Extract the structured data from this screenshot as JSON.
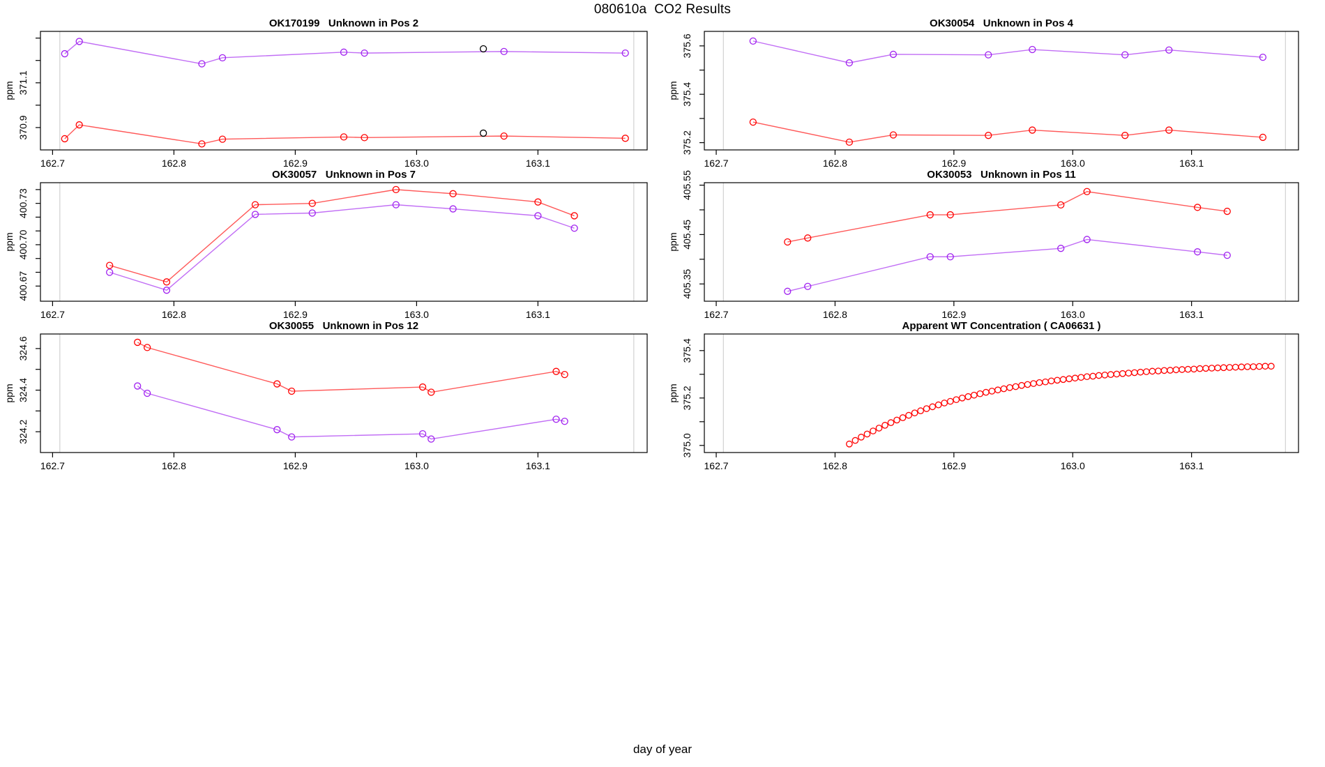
{
  "page": {
    "title": "080610a  CO2 Results",
    "xlabel": "day of year"
  },
  "axis": {
    "xlim": [
      162.69,
      163.19
    ],
    "x_ticks": [
      {
        "value": 162.7,
        "label": "162.7"
      },
      {
        "value": 162.8,
        "label": "162.8"
      },
      {
        "value": 162.9,
        "label": "162.9"
      },
      {
        "value": 163.0,
        "label": "163.0"
      },
      {
        "value": 163.1,
        "label": "163.1"
      }
    ],
    "vlines": [
      162.706,
      163.179
    ],
    "vline_color": "#c8c8c8"
  },
  "palette": {
    "red": "#ff0000",
    "purple": "#a020f0",
    "black": "#000000"
  },
  "chart_data": [
    {
      "id": "pos2",
      "type": "line",
      "title": "OK170199   Unknown in Pos 2",
      "ylabel": "ppm",
      "ylim": [
        370.8,
        371.33
      ],
      "y_ticks": [
        {
          "value": 370.9,
          "label": "370.9"
        },
        {
          "value": 371.0,
          "label": ""
        },
        {
          "value": 371.1,
          "label": "371.1"
        },
        {
          "value": 371.2,
          "label": ""
        },
        {
          "value": 371.3,
          "label": ""
        }
      ],
      "series": [
        {
          "name": "purple-series",
          "color": "#a020f0",
          "x": [
            162.71,
            162.722,
            162.823,
            162.84,
            162.94,
            162.957,
            163.072,
            163.172
          ],
          "y": [
            371.23,
            371.285,
            371.185,
            371.212,
            371.237,
            371.233,
            371.24,
            371.233
          ]
        },
        {
          "name": "red-series",
          "color": "#ff0000",
          "x": [
            162.71,
            162.722,
            162.823,
            162.84,
            162.94,
            162.957,
            163.072,
            163.172
          ],
          "y": [
            370.85,
            370.912,
            370.827,
            370.848,
            370.858,
            370.855,
            370.862,
            370.852
          ]
        }
      ],
      "markers": [
        {
          "x": 163.055,
          "y": 371.252,
          "color": "#000000"
        },
        {
          "x": 163.055,
          "y": 370.875,
          "color": "#000000"
        }
      ]
    },
    {
      "id": "pos4",
      "type": "line",
      "title": "OK30054   Unknown in Pos 4",
      "ylabel": "ppm",
      "ylim": [
        375.17,
        375.66
      ],
      "y_ticks": [
        {
          "value": 375.2,
          "label": "375.2"
        },
        {
          "value": 375.3,
          "label": ""
        },
        {
          "value": 375.4,
          "label": "375.4"
        },
        {
          "value": 375.5,
          "label": ""
        },
        {
          "value": 375.6,
          "label": "375.6"
        }
      ],
      "series": [
        {
          "name": "purple-series",
          "color": "#a020f0",
          "x": [
            162.731,
            162.812,
            162.849,
            162.929,
            162.966,
            163.044,
            163.081,
            163.16
          ],
          "y": [
            375.62,
            375.53,
            375.565,
            375.563,
            375.585,
            375.563,
            375.583,
            375.553
          ]
        },
        {
          "name": "red-series",
          "color": "#ff0000",
          "x": [
            162.731,
            162.812,
            162.849,
            162.929,
            162.966,
            163.044,
            163.081,
            163.16
          ],
          "y": [
            375.285,
            375.202,
            375.232,
            375.23,
            375.252,
            375.23,
            375.252,
            375.222
          ]
        }
      ],
      "markers": []
    },
    {
      "id": "pos7",
      "type": "line",
      "title": "OK30057   Unknown in Pos 7",
      "ylabel": "ppm",
      "ylim": [
        400.659,
        400.745
      ],
      "y_ticks": [
        {
          "value": 400.67,
          "label": "400.67"
        },
        {
          "value": 400.68,
          "label": ""
        },
        {
          "value": 400.69,
          "label": ""
        },
        {
          "value": 400.7,
          "label": "400.70"
        },
        {
          "value": 400.71,
          "label": ""
        },
        {
          "value": 400.72,
          "label": ""
        },
        {
          "value": 400.73,
          "label": "400.73"
        },
        {
          "value": 400.74,
          "label": ""
        }
      ],
      "series": [
        {
          "name": "red-series",
          "color": "#ff0000",
          "x": [
            162.747,
            162.794,
            162.867,
            162.914,
            162.983,
            163.03,
            163.1,
            163.13
          ],
          "y": [
            400.685,
            400.673,
            400.729,
            400.73,
            400.74,
            400.737,
            400.731,
            400.721
          ]
        },
        {
          "name": "purple-series",
          "color": "#a020f0",
          "x": [
            162.747,
            162.794,
            162.867,
            162.914,
            162.983,
            163.03,
            163.1,
            163.13
          ],
          "y": [
            400.68,
            400.667,
            400.722,
            400.723,
            400.729,
            400.726,
            400.721,
            400.712
          ]
        }
      ],
      "markers": []
    },
    {
      "id": "pos11",
      "type": "line",
      "title": "OK30053   Unknown in Pos 11",
      "ylabel": "ppm",
      "ylim": [
        405.315,
        405.555
      ],
      "y_ticks": [
        {
          "value": 405.35,
          "label": "405.35"
        },
        {
          "value": 405.4,
          "label": ""
        },
        {
          "value": 405.45,
          "label": "405.45"
        },
        {
          "value": 405.5,
          "label": ""
        },
        {
          "value": 405.55,
          "label": "405.55"
        }
      ],
      "series": [
        {
          "name": "red-series",
          "color": "#ff0000",
          "x": [
            162.76,
            162.777,
            162.88,
            162.897,
            162.99,
            163.012,
            163.105,
            163.13
          ],
          "y": [
            405.435,
            405.443,
            405.49,
            405.49,
            405.51,
            405.537,
            405.505,
            405.497
          ]
        },
        {
          "name": "purple-series",
          "color": "#a020f0",
          "x": [
            162.76,
            162.777,
            162.88,
            162.897,
            162.99,
            163.012,
            163.105,
            163.13
          ],
          "y": [
            405.335,
            405.345,
            405.405,
            405.405,
            405.422,
            405.44,
            405.415,
            405.408
          ]
        }
      ],
      "markers": []
    },
    {
      "id": "pos12",
      "type": "line",
      "title": "OK30055   Unknown in Pos 12",
      "ylabel": "ppm",
      "ylim": [
        324.1,
        324.67
      ],
      "y_ticks": [
        {
          "value": 324.2,
          "label": "324.2"
        },
        {
          "value": 324.3,
          "label": ""
        },
        {
          "value": 324.4,
          "label": "324.4"
        },
        {
          "value": 324.5,
          "label": ""
        },
        {
          "value": 324.6,
          "label": "324.6"
        }
      ],
      "series": [
        {
          "name": "red-series",
          "color": "#ff0000",
          "x": [
            162.77,
            162.778,
            162.885,
            162.897,
            163.005,
            163.012,
            163.115,
            163.122
          ],
          "y": [
            324.63,
            324.605,
            324.43,
            324.395,
            324.415,
            324.39,
            324.49,
            324.475
          ]
        },
        {
          "name": "purple-series",
          "color": "#a020f0",
          "x": [
            162.77,
            162.778,
            162.885,
            162.897,
            163.005,
            163.012,
            163.115,
            163.122
          ],
          "y": [
            324.42,
            324.385,
            324.21,
            324.175,
            324.19,
            324.165,
            324.26,
            324.25
          ]
        }
      ],
      "markers": []
    },
    {
      "id": "wt",
      "type": "scatter",
      "title": "Apparent WT Concentration ( CA06631 )",
      "ylabel": "ppm",
      "ylim": [
        374.97,
        375.47
      ],
      "y_ticks": [
        {
          "value": 375.0,
          "label": "375.0"
        },
        {
          "value": 375.1,
          "label": ""
        },
        {
          "value": 375.2,
          "label": "375.2"
        },
        {
          "value": 375.3,
          "label": ""
        },
        {
          "value": 375.4,
          "label": "375.4"
        }
      ],
      "series": [
        {
          "name": "red-series",
          "color": "#ff0000",
          "x": [
            162.812,
            162.817,
            162.822,
            162.827,
            162.832,
            162.837,
            162.842,
            162.847,
            162.852,
            162.857,
            162.862,
            162.867,
            162.872,
            162.877,
            162.882,
            162.887,
            162.892,
            162.897,
            162.902,
            162.907,
            162.912,
            162.917,
            162.922,
            162.927,
            162.932,
            162.937,
            162.942,
            162.947,
            162.952,
            162.957,
            162.962,
            162.967,
            162.972,
            162.977,
            162.982,
            162.987,
            162.992,
            162.997,
            163.002,
            163.007,
            163.012,
            163.017,
            163.022,
            163.027,
            163.032,
            163.037,
            163.042,
            163.047,
            163.052,
            163.057,
            163.062,
            163.067,
            163.072,
            163.077,
            163.082,
            163.087,
            163.092,
            163.097,
            163.102,
            163.107,
            163.112,
            163.117,
            163.122,
            163.127,
            163.132,
            163.137,
            163.142,
            163.147,
            163.152,
            163.157,
            163.162,
            163.167
          ],
          "y": [
            375.006,
            375.021,
            375.035,
            375.048,
            375.061,
            375.073,
            375.085,
            375.096,
            375.107,
            375.117,
            375.127,
            375.137,
            375.146,
            375.155,
            375.163,
            375.171,
            375.179,
            375.186,
            375.193,
            375.2,
            375.206,
            375.212,
            375.218,
            375.224,
            375.229,
            375.234,
            375.239,
            375.244,
            375.248,
            375.253,
            375.257,
            375.261,
            375.265,
            375.268,
            375.272,
            375.275,
            375.278,
            375.281,
            375.284,
            375.287,
            375.29,
            375.292,
            375.295,
            375.297,
            375.299,
            375.301,
            375.303,
            375.305,
            375.307,
            375.309,
            375.311,
            375.313,
            375.314,
            375.316,
            375.317,
            375.319,
            375.32,
            375.321,
            375.322,
            375.324,
            375.325,
            375.326,
            375.327,
            375.328,
            375.329,
            375.33,
            375.331,
            375.332,
            375.332,
            375.333,
            375.334,
            375.334
          ]
        }
      ],
      "markers": []
    }
  ]
}
